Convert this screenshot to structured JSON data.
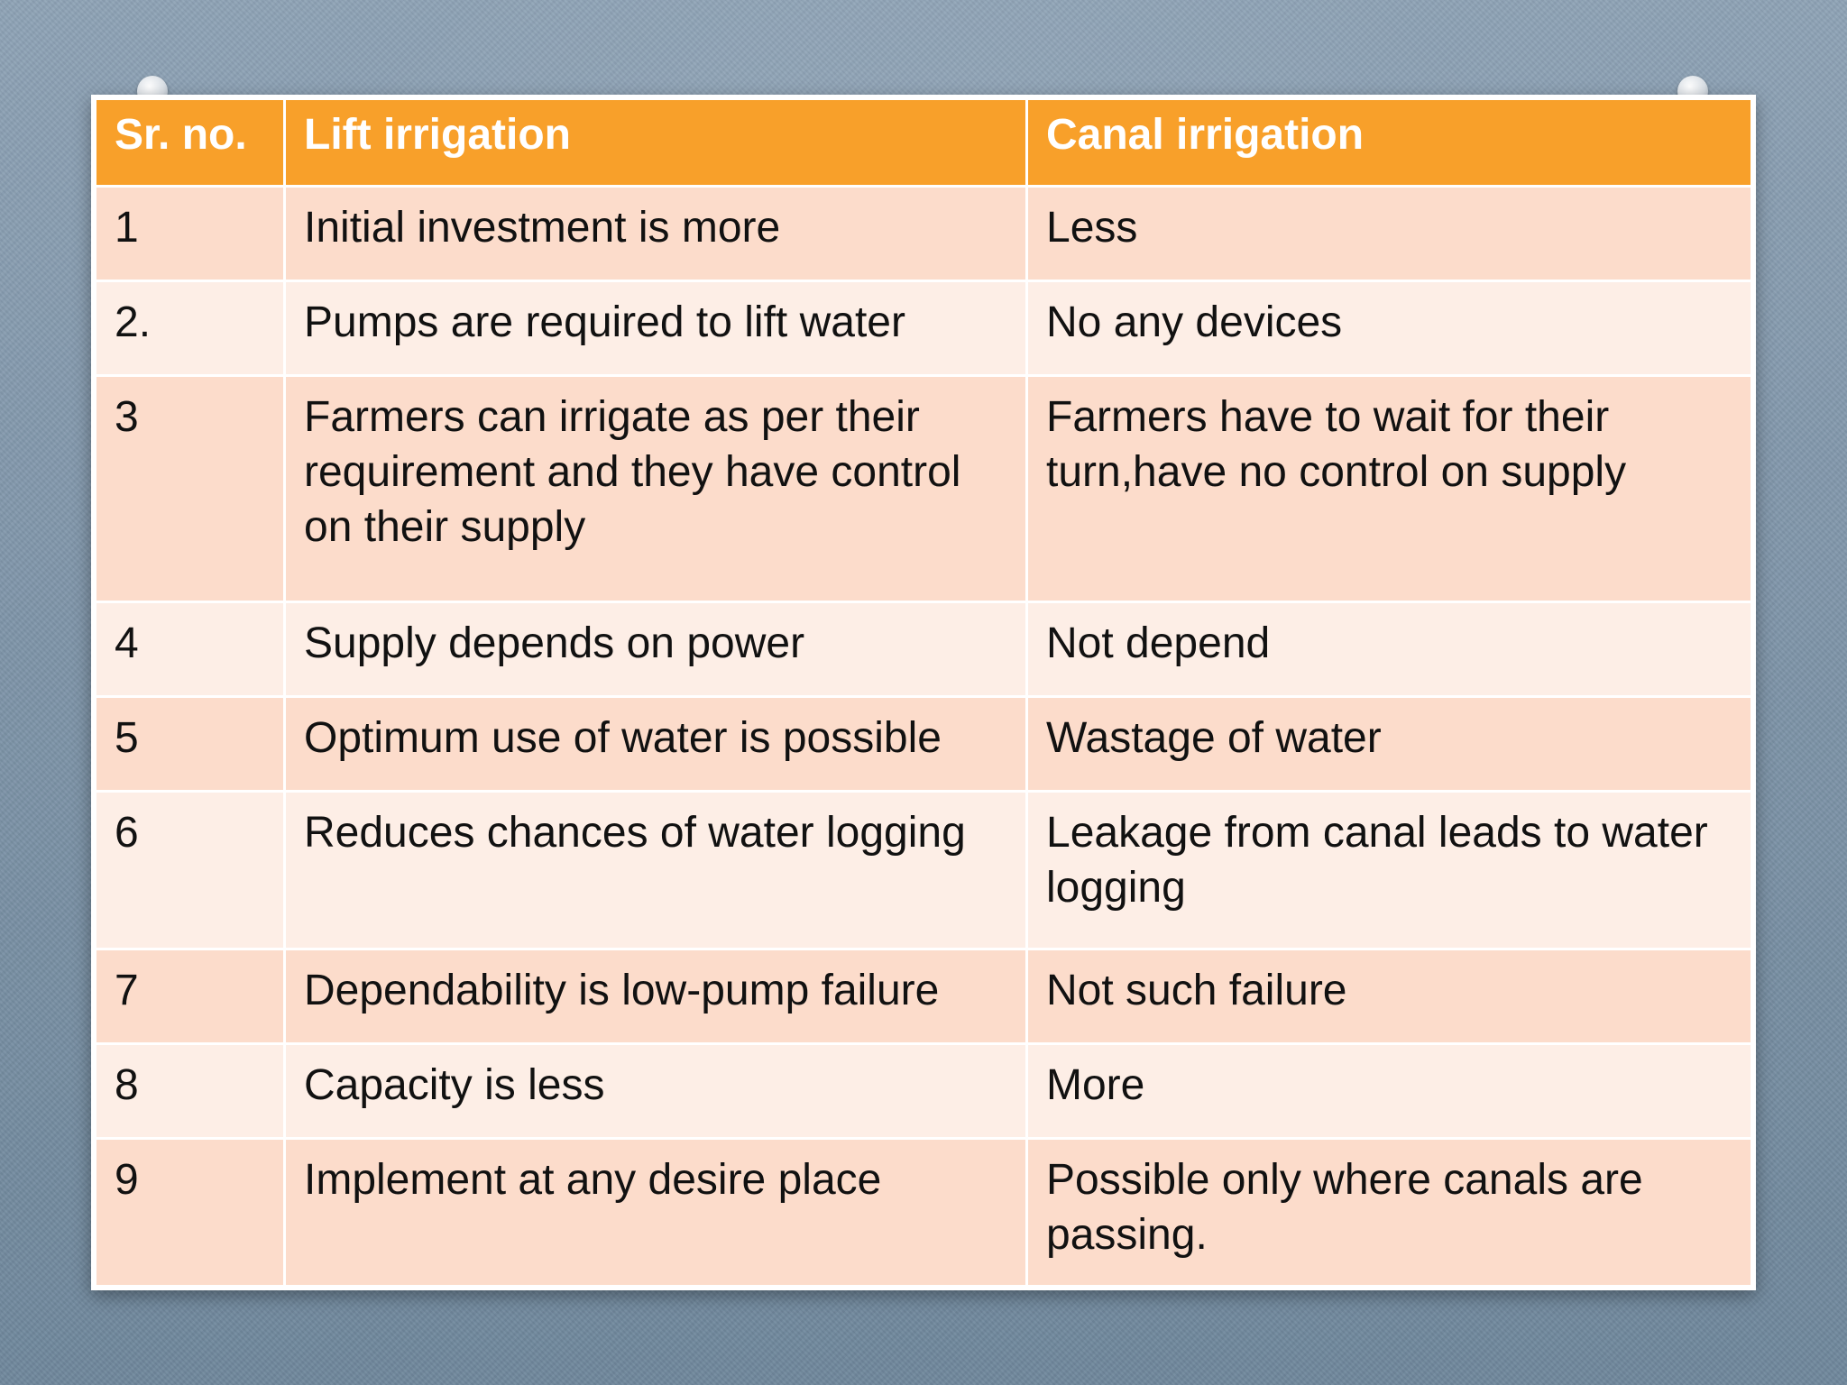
{
  "table": {
    "headers": [
      "Sr. no.",
      "Lift irrigation",
      "Canal irrigation"
    ],
    "rows": [
      {
        "sr": "1",
        "lift": "Initial investment is more",
        "canal": "Less"
      },
      {
        "sr": "2.",
        "lift": "Pumps are required to lift water",
        "canal": "No any devices"
      },
      {
        "sr": "3",
        "lift": "Farmers can irrigate as per their requirement and they have control on their supply",
        "canal": "Farmers have to wait for their turn,have no control on supply"
      },
      {
        "sr": "4",
        "lift": "Supply depends on power",
        "canal": "Not depend"
      },
      {
        "sr": "5",
        "lift": "Optimum use of water is possible",
        "canal": "Wastage of water"
      },
      {
        "sr": "6",
        "lift": "Reduces chances of water logging",
        "canal": "Leakage from canal leads to water logging"
      },
      {
        "sr": "7",
        "lift": "Dependability is low-pump failure",
        "canal": "Not such failure"
      },
      {
        "sr": "8",
        "lift": "Capacity is less",
        "canal": "More"
      },
      {
        "sr": "9",
        "lift": "Implement at any desire place",
        "canal": "Possible only where canals are passing."
      }
    ]
  },
  "colors": {
    "header": "#f8a02a",
    "row_odd": "#fcdccb",
    "row_even": "#fdeee6"
  }
}
